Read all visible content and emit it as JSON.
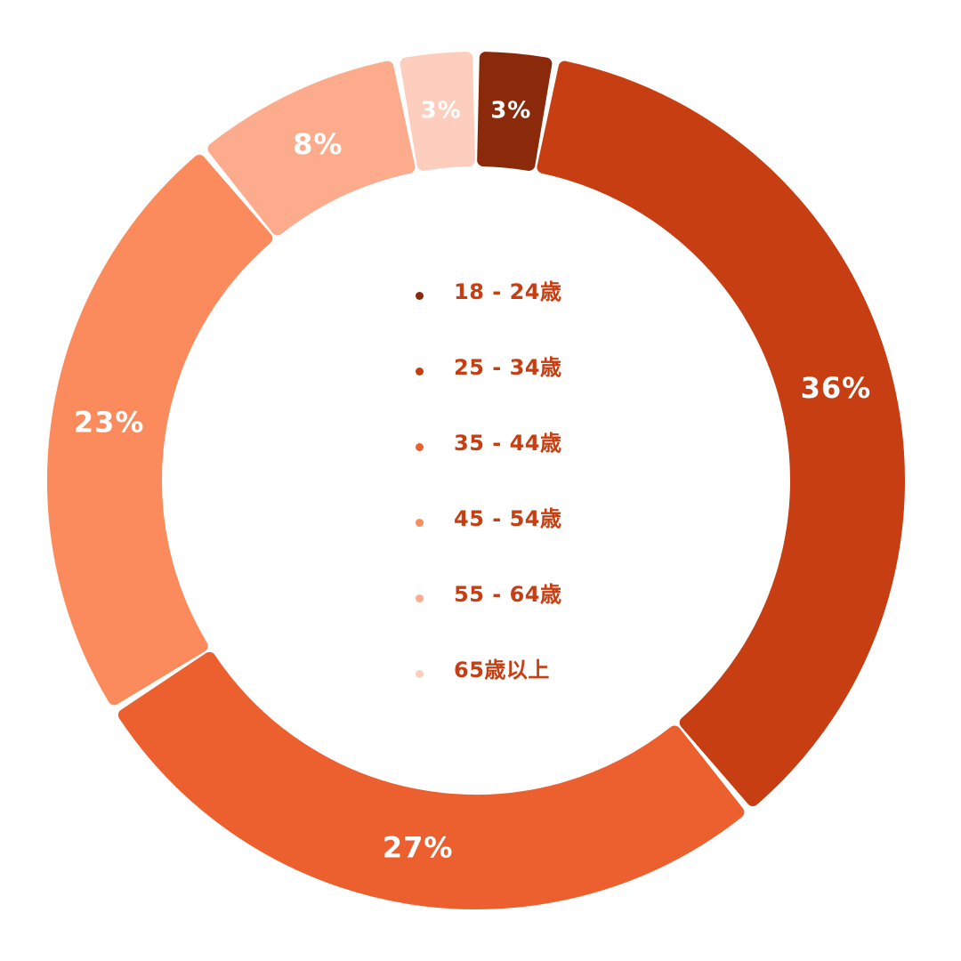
{
  "chart_data": {
    "type": "pie",
    "variant": "donut",
    "categories": [
      "18 - 24歳",
      "25 - 34歳",
      "35 - 44歳",
      "45 - 54歳",
      "55 - 64歳",
      "65歳以上"
    ],
    "values": [
      3,
      36,
      27,
      23,
      8,
      3
    ],
    "value_labels": [
      "3%",
      "36%",
      "27%",
      "23%",
      "8%",
      "3%"
    ],
    "colors": [
      "#8a2a0a",
      "#c63e12",
      "#ec5f2e",
      "#fb8a5c",
      "#fdab8d",
      "#fdcdbd"
    ],
    "legend_placement": "center",
    "title": ""
  }
}
